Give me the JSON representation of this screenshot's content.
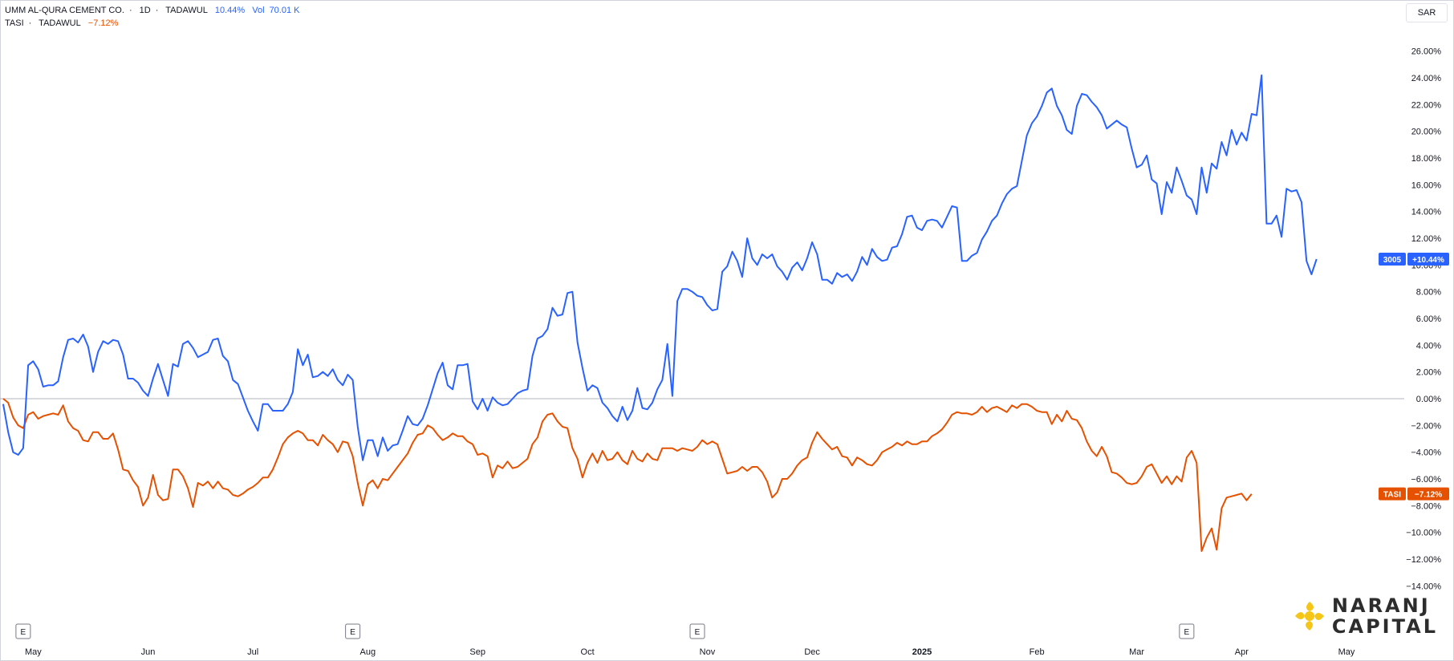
{
  "legend": {
    "series1": {
      "name": "UMM AL-QURA CEMENT CO.",
      "interval": "1D",
      "exchange": "TADAWUL",
      "change": "10.44%",
      "vol_label": "Vol",
      "vol_value": "70.01 K"
    },
    "series2": {
      "name": "TASI",
      "exchange": "TADAWUL",
      "change": "−7.12%"
    }
  },
  "currency": "SAR",
  "logo": {
    "line1": "NARANJ",
    "line2": "CAPITAL"
  },
  "event_marker_label": "E",
  "colors": {
    "series1": "#2962ff",
    "series2": "#e65100",
    "zero_line": "#b2b5be",
    "axis_text": "#131722"
  },
  "chart_data": {
    "type": "line",
    "y_unit": "%",
    "ylim": [
      -15,
      27
    ],
    "yticks": [
      "26.00%",
      "24.00%",
      "22.00%",
      "20.00%",
      "18.00%",
      "16.00%",
      "14.00%",
      "12.00%",
      "10.00%",
      "8.00%",
      "6.00%",
      "4.00%",
      "2.00%",
      "0.00%",
      "−2.00%",
      "−4.00%",
      "−6.00%",
      "−8.00%",
      "−10.00%",
      "−12.00%",
      "−14.00%"
    ],
    "ytick_values": [
      26,
      24,
      22,
      20,
      18,
      16,
      14,
      12,
      10,
      8,
      6,
      4,
      2,
      0,
      -2,
      -4,
      -6,
      -8,
      -10,
      -12,
      -14
    ],
    "xticks": [
      {
        "label": "May",
        "i": 6,
        "bold": false
      },
      {
        "label": "Jun",
        "i": 29,
        "bold": false
      },
      {
        "label": "Jul",
        "i": 50,
        "bold": false
      },
      {
        "label": "Aug",
        "i": 73,
        "bold": false
      },
      {
        "label": "Sep",
        "i": 95,
        "bold": false
      },
      {
        "label": "Oct",
        "i": 117,
        "bold": false
      },
      {
        "label": "Nov",
        "i": 141,
        "bold": false
      },
      {
        "label": "Dec",
        "i": 162,
        "bold": false
      },
      {
        "label": "2025",
        "i": 184,
        "bold": true
      },
      {
        "label": "Feb",
        "i": 207,
        "bold": false
      },
      {
        "label": "Mar",
        "i": 227,
        "bold": false
      },
      {
        "label": "Apr",
        "i": 248,
        "bold": false
      },
      {
        "label": "May",
        "i": 269,
        "bold": false
      }
    ],
    "x_total_days": 270,
    "event_markers_i": [
      4,
      70,
      139,
      237
    ],
    "grid": false,
    "series": [
      {
        "name": "3005",
        "last_value_label": "+10.44%",
        "values": [
          -0.4,
          -2.5,
          -4,
          -4.2,
          -3.7,
          2.5,
          2.8,
          2.2,
          0.9,
          1,
          1,
          1.3,
          3.1,
          4.4,
          4.5,
          4.2,
          4.8,
          3.9,
          2,
          3.5,
          4.3,
          4.1,
          4.4,
          4.3,
          3.3,
          1.5,
          1.5,
          1.2,
          0.6,
          0.2,
          1.5,
          2.6,
          1.4,
          0.2,
          2.6,
          2.4,
          4.1,
          4.3,
          3.8,
          3.1,
          3.3,
          3.5,
          4.4,
          4.5,
          3.2,
          2.8,
          1.4,
          1.1,
          0.1,
          -0.9,
          -1.7,
          -2.4,
          -0.4,
          -0.4,
          -0.9,
          -0.9,
          -0.9,
          -0.4,
          0.5,
          3.7,
          2.5,
          3.3,
          1.6,
          1.7,
          2,
          1.7,
          2.2,
          1.4,
          1,
          1.8,
          1.4,
          -2.1,
          -4.6,
          -3.1,
          -3.1,
          -4.3,
          -2.9,
          -3.9,
          -3.5,
          -3.4,
          -2.4,
          -1.3,
          -1.9,
          -2,
          -1.5,
          -0.5,
          0.7,
          1.9,
          2.7,
          1,
          0.7,
          2.5,
          2.5,
          2.6,
          -0.2,
          -0.8,
          0,
          -0.9,
          0.1,
          -0.3,
          -0.5,
          -0.4,
          0,
          0.4,
          0.6,
          0.7,
          3.2,
          4.5,
          4.7,
          5.2,
          6.8,
          6.2,
          6.3,
          7.9,
          8,
          4.2,
          2.3,
          0.6,
          1,
          0.8,
          -0.3,
          -0.7,
          -1.3,
          -1.7,
          -0.6,
          -1.6,
          -0.9,
          0.8,
          -0.7,
          -0.8,
          -0.3,
          0.7,
          1.4,
          4.1,
          0.2,
          7.3,
          8.2,
          8.2,
          8,
          7.7,
          7.6,
          7,
          6.6,
          6.7,
          9.5,
          9.9,
          11,
          10.3,
          9.1,
          12,
          10.5,
          10,
          10.8,
          10.5,
          10.8,
          9.9,
          9.5,
          8.9,
          9.8,
          10.2,
          9.6,
          10.5,
          11.7,
          10.8,
          8.9,
          8.9,
          8.6,
          9.4,
          9.1,
          9.3,
          8.8,
          9.5,
          10.6,
          10,
          11.2,
          10.6,
          10.3,
          10.4,
          11.3,
          11.4,
          12.3,
          13.6,
          13.7,
          12.8,
          12.6,
          13.3,
          13.4,
          13.3,
          12.8,
          13.6,
          14.4,
          14.3,
          10.3,
          10.3,
          10.7,
          10.9,
          11.9,
          12.5,
          13.3,
          13.7,
          14.6,
          15.3,
          15.7,
          15.9,
          17.8,
          19.7,
          20.6,
          21.1,
          21.9,
          22.9,
          23.2,
          21.9,
          21.2,
          20.1,
          19.8,
          21.9,
          22.8,
          22.7,
          22.2,
          21.8,
          21.2,
          20.2,
          20.5,
          20.8,
          20.5,
          20.3,
          18.7,
          17.3,
          17.5,
          18.2,
          16.4,
          16.1,
          13.8,
          16.2,
          15.4,
          17.3,
          16.3,
          15.2,
          14.9,
          13.8,
          17.3,
          15.4,
          17.6,
          17.2,
          19.2,
          18.2,
          20.1,
          19,
          19.9,
          19.3,
          21.3,
          21.2,
          24.2,
          13.1,
          13.1,
          13.7,
          12.1,
          15.7,
          15.5,
          15.6,
          14.7,
          10.3,
          9.3,
          10.44
        ]
      },
      {
        "name": "TASI",
        "last_value_label": "−7.12%",
        "values": [
          0,
          -0.3,
          -1.4,
          -2,
          -2.2,
          -1.2,
          -1,
          -1.5,
          -1.3,
          -1.2,
          -1.1,
          -1.2,
          -0.5,
          -1.7,
          -2.2,
          -2.4,
          -3.1,
          -3.2,
          -2.5,
          -2.5,
          -3,
          -3,
          -2.6,
          -3.8,
          -5.3,
          -5.4,
          -6.1,
          -6.6,
          -8,
          -7.4,
          -5.7,
          -7.2,
          -7.6,
          -7.5,
          -5.3,
          -5.3,
          -5.8,
          -6.7,
          -8.1,
          -6.3,
          -6.5,
          -6.2,
          -6.7,
          -6.2,
          -6.7,
          -6.8,
          -7.2,
          -7.3,
          -7.1,
          -6.8,
          -6.6,
          -6.3,
          -5.9,
          -5.9,
          -5.3,
          -4.4,
          -3.4,
          -2.9,
          -2.6,
          -2.4,
          -2.6,
          -3.1,
          -3.1,
          -3.5,
          -2.7,
          -3.1,
          -3.4,
          -4,
          -3.2,
          -3.3,
          -4.3,
          -6.3,
          -8,
          -6.4,
          -6.1,
          -6.7,
          -6,
          -6.1,
          -5.6,
          -5.1,
          -4.6,
          -4.1,
          -3.3,
          -2.7,
          -2.6,
          -2,
          -2.2,
          -2.7,
          -3.1,
          -2.9,
          -2.6,
          -2.8,
          -2.8,
          -3.2,
          -3.4,
          -4.2,
          -4.1,
          -4.3,
          -5.9,
          -5,
          -5.2,
          -4.7,
          -5.2,
          -5.1,
          -4.8,
          -4.5,
          -3.4,
          -2.9,
          -1.7,
          -1.2,
          -1.1,
          -1.7,
          -2.1,
          -2.2,
          -3.7,
          -4.5,
          -5.9,
          -4.8,
          -4.1,
          -4.8,
          -3.9,
          -4.6,
          -4.5,
          -4,
          -4.6,
          -4.9,
          -3.9,
          -4.5,
          -4.7,
          -4.1,
          -4.5,
          -4.6,
          -3.7,
          -3.7,
          -3.7,
          -3.9,
          -3.7,
          -3.8,
          -3.9,
          -3.6,
          -3.1,
          -3.4,
          -3.2,
          -3.4,
          -4.5,
          -5.6,
          -5.5,
          -5.4,
          -5.1,
          -5.4,
          -5.1,
          -5.1,
          -5.5,
          -6.2,
          -7.4,
          -7,
          -6,
          -6,
          -5.6,
          -5,
          -4.6,
          -4.4,
          -3.3,
          -2.5,
          -3,
          -3.4,
          -3.8,
          -3.6,
          -4.3,
          -4.4,
          -5,
          -4.4,
          -4.6,
          -4.9,
          -5,
          -4.6,
          -4,
          -3.8,
          -3.6,
          -3.3,
          -3.5,
          -3.2,
          -3.4,
          -3.4,
          -3.2,
          -3.2,
          -2.8,
          -2.6,
          -2.3,
          -1.8,
          -1.2,
          -1,
          -1.1,
          -1.1,
          -1.2,
          -1,
          -0.6,
          -1,
          -0.7,
          -0.6,
          -0.8,
          -1,
          -0.5,
          -0.7,
          -0.4,
          -0.4,
          -0.6,
          -0.9,
          -1,
          -1,
          -1.9,
          -1.2,
          -1.7,
          -0.9,
          -1.5,
          -1.6,
          -2.2,
          -3.2,
          -3.9,
          -4.3,
          -3.6,
          -4.3,
          -5.5,
          -5.6,
          -5.9,
          -6.3,
          -6.4,
          -6.3,
          -5.8,
          -5.1,
          -4.9,
          -5.6,
          -6.3,
          -5.8,
          -6.4,
          -5.8,
          -6.2,
          -4.4,
          -3.9,
          -4.8,
          -11.4,
          -10.4,
          -9.7,
          -11.3,
          -8.2,
          -7.4,
          -7.3,
          -7.2,
          -7.1,
          -7.6,
          -7.12
        ]
      }
    ]
  }
}
